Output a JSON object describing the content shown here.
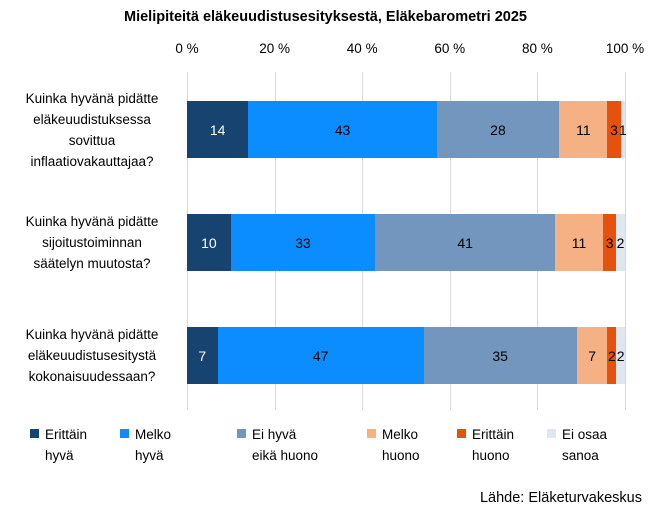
{
  "title": "Mielipiteitä eläkeuudistusesityksestä, Eläkebarometri 2025",
  "source": "Lähde: Eläketurvakeskus",
  "chart_data": {
    "type": "bar",
    "orientation": "horizontal",
    "stacked": true,
    "title": "Mielipiteitä eläkeuudistusesityksestä, Eläkebarometri 2025",
    "xlim": [
      0,
      100
    ],
    "x_ticks": [
      "0 %",
      "20 %",
      "40 %",
      "60 %",
      "80 %",
      "100 %"
    ],
    "grid": true,
    "legend_position": "bottom",
    "categories": [
      "Kuinka hyvänä pidätte eläkeuudistuksessa sovittua inflaatiovakauttajaa?",
      "Kuinka hyvänä pidätte sijoitustoiminnan säätelyn muutosta?",
      "Kuinka hyvänä pidätte eläkeuudistusesitystä kokonaisuudessaan?"
    ],
    "categories_lines": [
      [
        "Kuinka hyvänä pidätte",
        "eläkeuudistuksessa",
        "sovittua",
        "inflaatiovakauttajaa?"
      ],
      [
        "Kuinka hyvänä pidätte",
        "sijoitustoiminnan",
        "säätelyn muutosta?"
      ],
      [
        "Kuinka hyvänä pidätte",
        "eläkeuudistusesitystä",
        "kokonaisuudessaan?"
      ]
    ],
    "series": [
      {
        "name": "Erittäin hyvä",
        "label_lines": [
          "Erittäin",
          "hyvä"
        ],
        "color": "#164370",
        "label_color": "#ffffff",
        "values": [
          14,
          10,
          7
        ]
      },
      {
        "name": "Melko hyvä",
        "label_lines": [
          "Melko",
          "hyvä"
        ],
        "color": "#0c8dff",
        "label_color": "#000000",
        "values": [
          43,
          33,
          47
        ]
      },
      {
        "name": "Ei hyvä eikä huono",
        "label_lines": [
          "Ei hyvä",
          "eikä huono"
        ],
        "color": "#7396bf",
        "label_color": "#000000",
        "values": [
          28,
          41,
          35
        ]
      },
      {
        "name": "Melko huono",
        "label_lines": [
          "Melko",
          "huono"
        ],
        "color": "#f5b183",
        "label_color": "#000000",
        "values": [
          11,
          11,
          7
        ]
      },
      {
        "name": "Erittäin huono",
        "label_lines": [
          "Erittäin",
          "huono"
        ],
        "color": "#e5520d",
        "label_color": "#000000",
        "values": [
          3,
          3,
          2
        ]
      },
      {
        "name": "Ei osaa sanoa",
        "label_lines": [
          "Ei osaa",
          "sanoa"
        ],
        "color": "#dee6f0",
        "label_color": "#000000",
        "values": [
          1,
          2,
          2
        ]
      }
    ]
  }
}
